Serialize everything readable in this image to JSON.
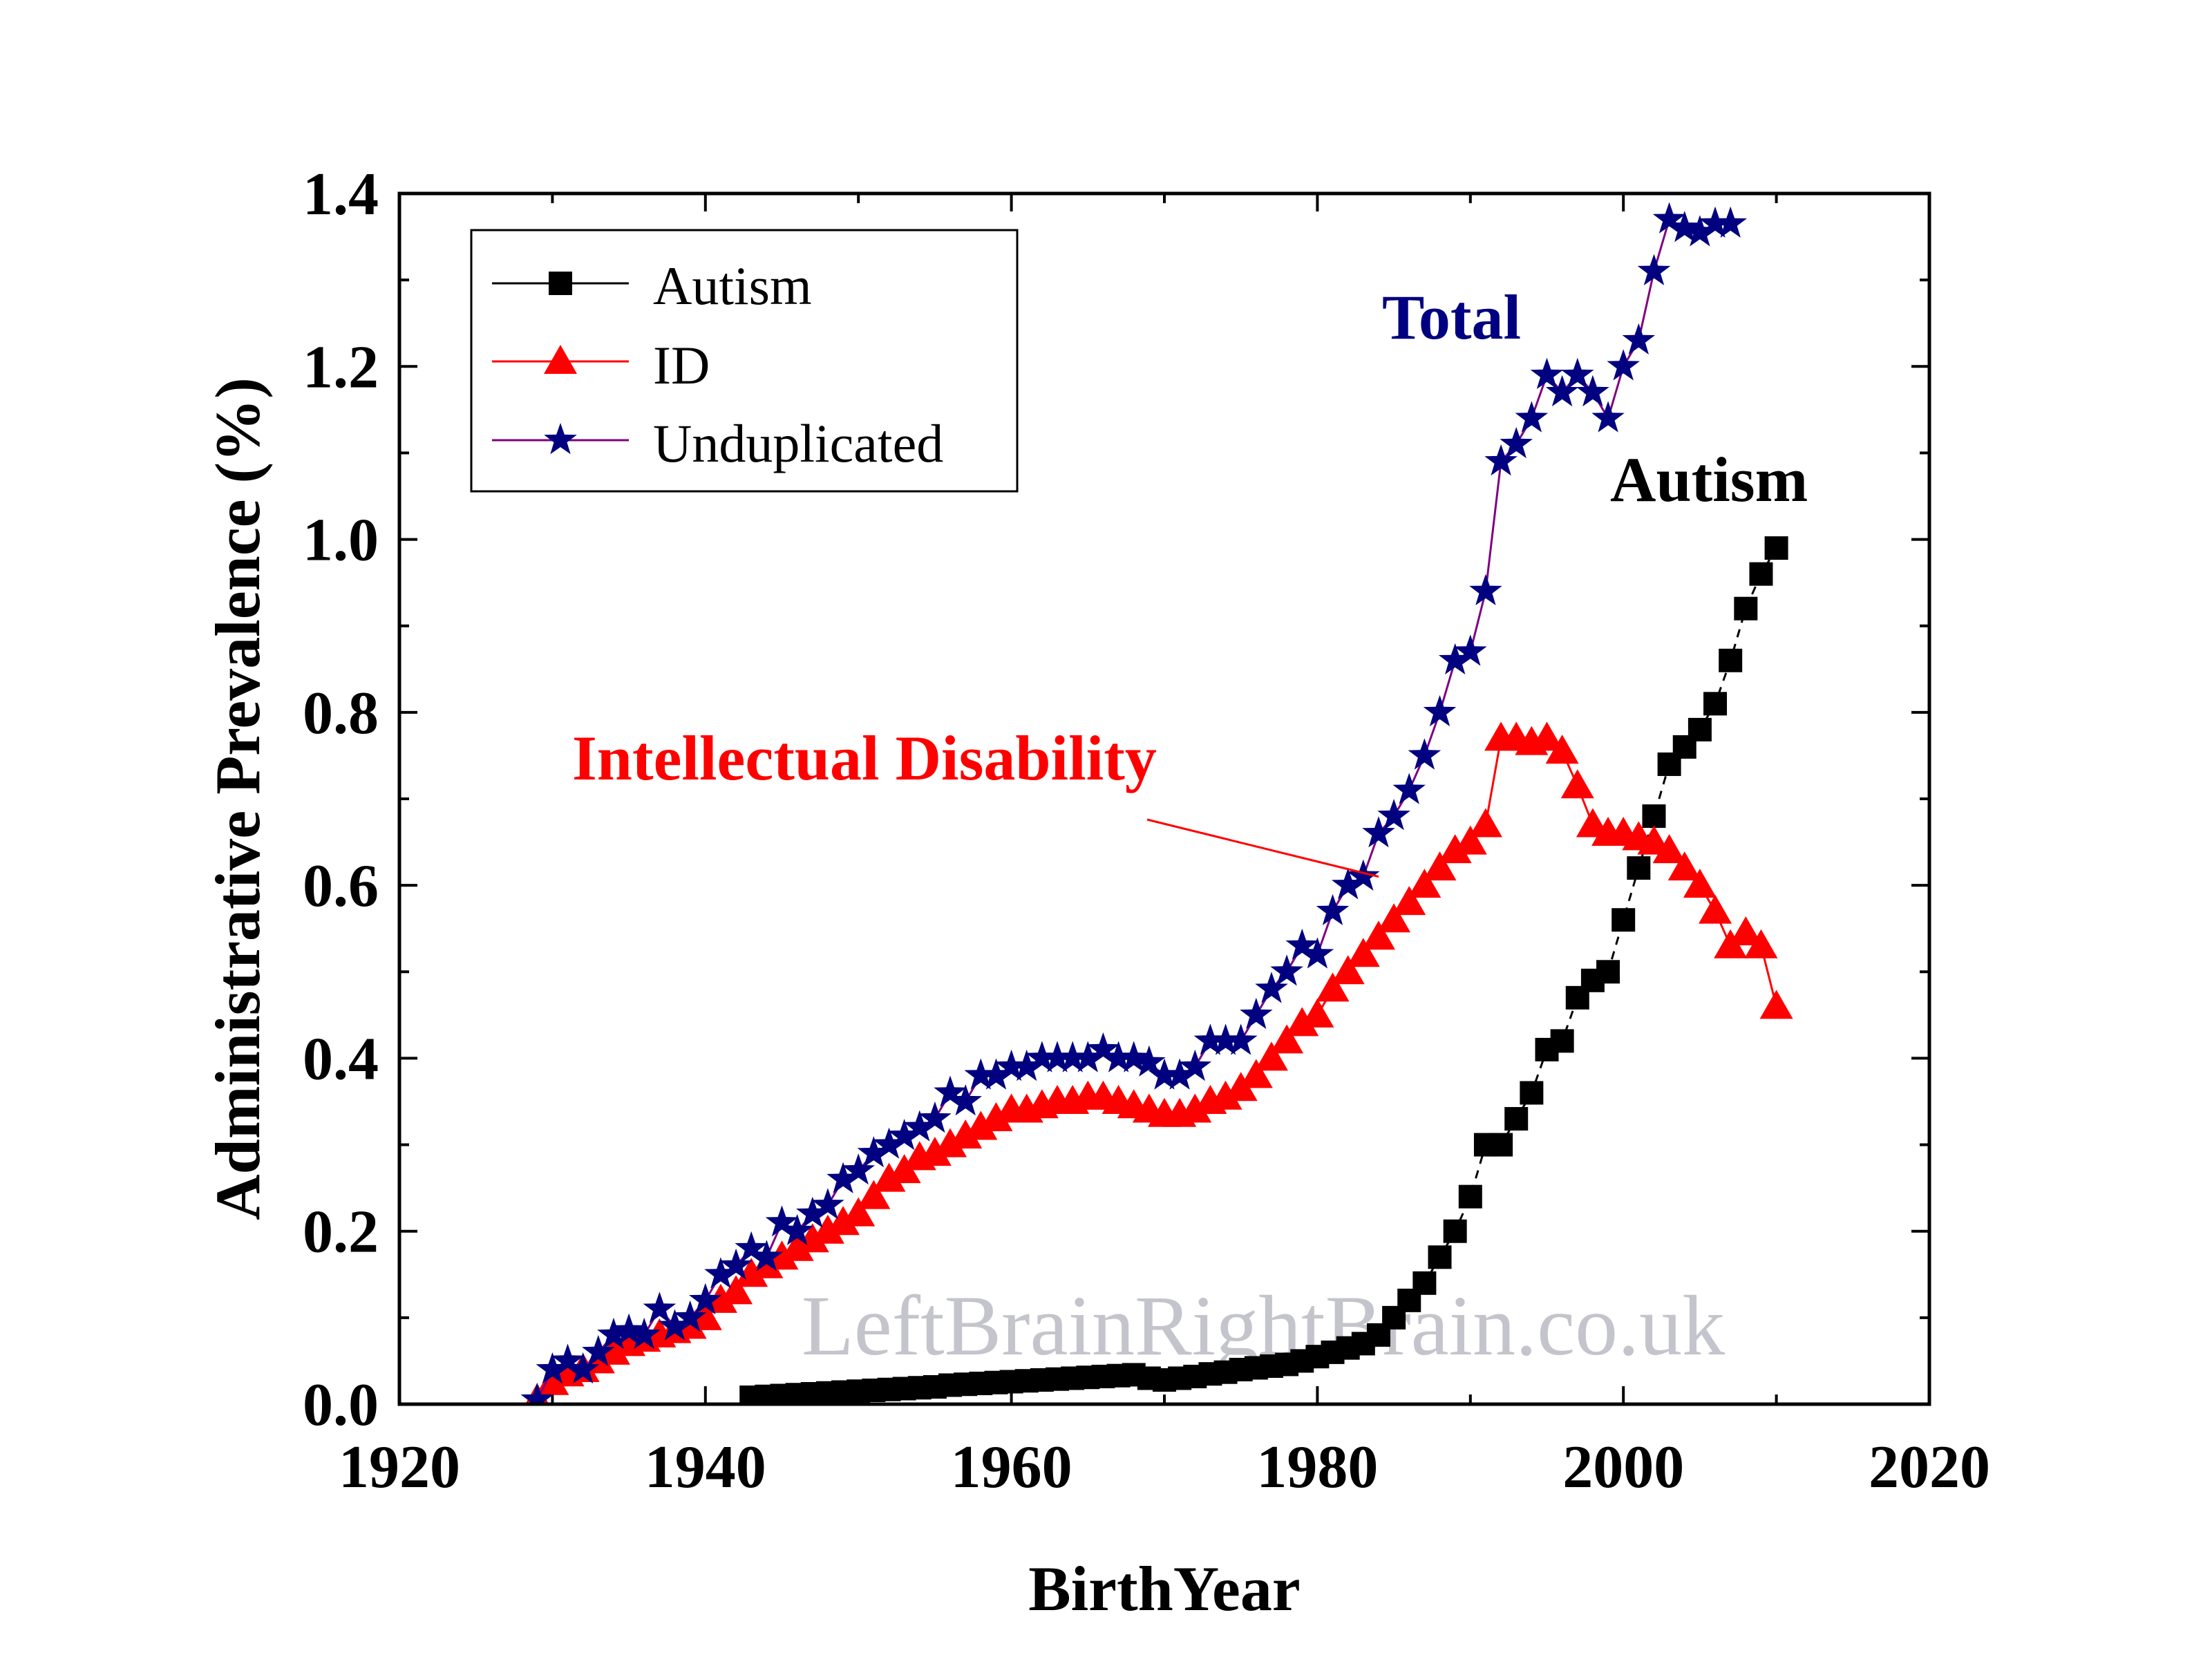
{
  "chart_data": {
    "type": "line",
    "xlabel": "BirthYear",
    "ylabel": "Administrative Prevalence (%)",
    "xlim": [
      1920,
      2020
    ],
    "ylim": [
      0,
      1.4
    ],
    "x_ticks": [
      1920,
      1940,
      1960,
      1980,
      2000,
      2020
    ],
    "y_ticks": [
      0.0,
      0.2,
      0.4,
      0.6,
      0.8,
      1.0,
      1.2,
      1.4
    ],
    "legend_position": "top-left",
    "series": [
      {
        "name": "Autism",
        "color": "#000000",
        "marker": "square",
        "x": [
          1943,
          1944,
          1945,
          1946,
          1947,
          1948,
          1949,
          1950,
          1951,
          1952,
          1953,
          1954,
          1955,
          1956,
          1957,
          1958,
          1959,
          1960,
          1961,
          1962,
          1963,
          1964,
          1965,
          1966,
          1967,
          1968,
          1969,
          1970,
          1971,
          1972,
          1973,
          1974,
          1975,
          1976,
          1977,
          1978,
          1979,
          1980,
          1981,
          1982,
          1983,
          1984,
          1985,
          1986,
          1987,
          1988,
          1989,
          1990,
          1991,
          1992,
          1993,
          1994,
          1995,
          1996,
          1997,
          1998,
          1999,
          2000,
          2001,
          2002,
          2003,
          2004,
          2005,
          2006,
          2007,
          2008,
          2009,
          2010
        ],
        "y": [
          0.008,
          0.009,
          0.01,
          0.011,
          0.012,
          0.013,
          0.014,
          0.015,
          0.016,
          0.017,
          0.018,
          0.019,
          0.02,
          0.022,
          0.023,
          0.024,
          0.025,
          0.026,
          0.027,
          0.028,
          0.029,
          0.03,
          0.031,
          0.032,
          0.033,
          0.034,
          0.03,
          0.028,
          0.03,
          0.032,
          0.035,
          0.037,
          0.04,
          0.042,
          0.044,
          0.046,
          0.05,
          0.055,
          0.06,
          0.065,
          0.07,
          0.08,
          0.1,
          0.12,
          0.14,
          0.17,
          0.2,
          0.24,
          0.3,
          0.3,
          0.33,
          0.36,
          0.41,
          0.42,
          0.47,
          0.49,
          0.5,
          0.56,
          0.62,
          0.68,
          0.74,
          0.76,
          0.78,
          0.81,
          0.86,
          0.92,
          0.96,
          0.99
        ]
      },
      {
        "name": "ID",
        "color": "#ff0000",
        "marker": "triangle",
        "x": [
          1929,
          1930,
          1931,
          1932,
          1933,
          1934,
          1935,
          1936,
          1937,
          1938,
          1939,
          1940,
          1941,
          1942,
          1943,
          1944,
          1945,
          1946,
          1947,
          1948,
          1949,
          1950,
          1951,
          1952,
          1953,
          1954,
          1955,
          1956,
          1957,
          1958,
          1959,
          1960,
          1961,
          1962,
          1963,
          1964,
          1965,
          1966,
          1967,
          1968,
          1969,
          1970,
          1971,
          1972,
          1973,
          1974,
          1975,
          1976,
          1977,
          1978,
          1979,
          1980,
          1981,
          1982,
          1983,
          1984,
          1985,
          1986,
          1987,
          1988,
          1989,
          1990,
          1991,
          1992,
          1993,
          1994,
          1995,
          1996,
          1997,
          1998,
          1999,
          2000,
          2001,
          2002,
          2003,
          2004,
          2005,
          2006,
          2007,
          2008,
          2009,
          2010
        ],
        "y": [
          0.005,
          0.025,
          0.035,
          0.04,
          0.05,
          0.06,
          0.07,
          0.075,
          0.08,
          0.085,
          0.09,
          0.1,
          0.12,
          0.13,
          0.15,
          0.16,
          0.17,
          0.18,
          0.19,
          0.2,
          0.21,
          0.22,
          0.24,
          0.26,
          0.27,
          0.285,
          0.29,
          0.3,
          0.31,
          0.32,
          0.33,
          0.34,
          0.34,
          0.345,
          0.35,
          0.35,
          0.355,
          0.355,
          0.35,
          0.345,
          0.34,
          0.335,
          0.335,
          0.34,
          0.35,
          0.355,
          0.365,
          0.38,
          0.4,
          0.42,
          0.44,
          0.45,
          0.48,
          0.5,
          0.52,
          0.54,
          0.56,
          0.58,
          0.6,
          0.62,
          0.64,
          0.65,
          0.67,
          0.77,
          0.77,
          0.765,
          0.77,
          0.755,
          0.715,
          0.67,
          0.66,
          0.66,
          0.655,
          0.65,
          0.64,
          0.62,
          0.6,
          0.57,
          0.53,
          0.545,
          0.53,
          0.46
        ]
      },
      {
        "name": "Unduplicated",
        "color": "#000080",
        "line_color": "#800080",
        "marker": "star",
        "x": [
          1929,
          1930,
          1931,
          1932,
          1933,
          1934,
          1935,
          1936,
          1937,
          1938,
          1939,
          1940,
          1941,
          1942,
          1943,
          1944,
          1945,
          1946,
          1947,
          1948,
          1949,
          1950,
          1951,
          1952,
          1953,
          1954,
          1955,
          1956,
          1957,
          1958,
          1959,
          1960,
          1961,
          1962,
          1963,
          1964,
          1965,
          1966,
          1967,
          1968,
          1969,
          1970,
          1971,
          1972,
          1973,
          1974,
          1975,
          1976,
          1977,
          1978,
          1979,
          1980,
          1981,
          1982,
          1983,
          1984,
          1985,
          1986,
          1987,
          1988,
          1989,
          1990,
          1991,
          1992,
          1993,
          1994,
          1995,
          1996,
          1997,
          1998,
          1999,
          2000,
          2001,
          2002,
          2003,
          2004,
          2005,
          2006,
          2007
        ],
        "y": [
          0.005,
          0.04,
          0.05,
          0.04,
          0.06,
          0.08,
          0.085,
          0.08,
          0.11,
          0.09,
          0.1,
          0.12,
          0.15,
          0.16,
          0.18,
          0.17,
          0.21,
          0.2,
          0.22,
          0.23,
          0.26,
          0.27,
          0.29,
          0.3,
          0.31,
          0.32,
          0.33,
          0.36,
          0.35,
          0.38,
          0.38,
          0.39,
          0.39,
          0.4,
          0.4,
          0.4,
          0.4,
          0.41,
          0.4,
          0.4,
          0.395,
          0.38,
          0.38,
          0.39,
          0.42,
          0.42,
          0.42,
          0.45,
          0.48,
          0.5,
          0.53,
          0.52,
          0.57,
          0.6,
          0.61,
          0.66,
          0.68,
          0.71,
          0.75,
          0.8,
          0.86,
          0.87,
          0.94,
          1.09,
          1.11,
          1.14,
          1.19,
          1.17,
          1.19,
          1.17,
          1.14,
          1.2,
          1.23,
          1.31,
          1.37,
          1.36,
          1.355,
          1.365,
          1.365
        ]
      }
    ],
    "annotations": [
      {
        "text": "Total",
        "color": "#000080"
      },
      {
        "text": "Autism",
        "color": "#000000"
      },
      {
        "text": "Intellectual Disability",
        "color": "#ff0000"
      }
    ],
    "watermark": "LeftBrainRightBrain.co.uk"
  }
}
